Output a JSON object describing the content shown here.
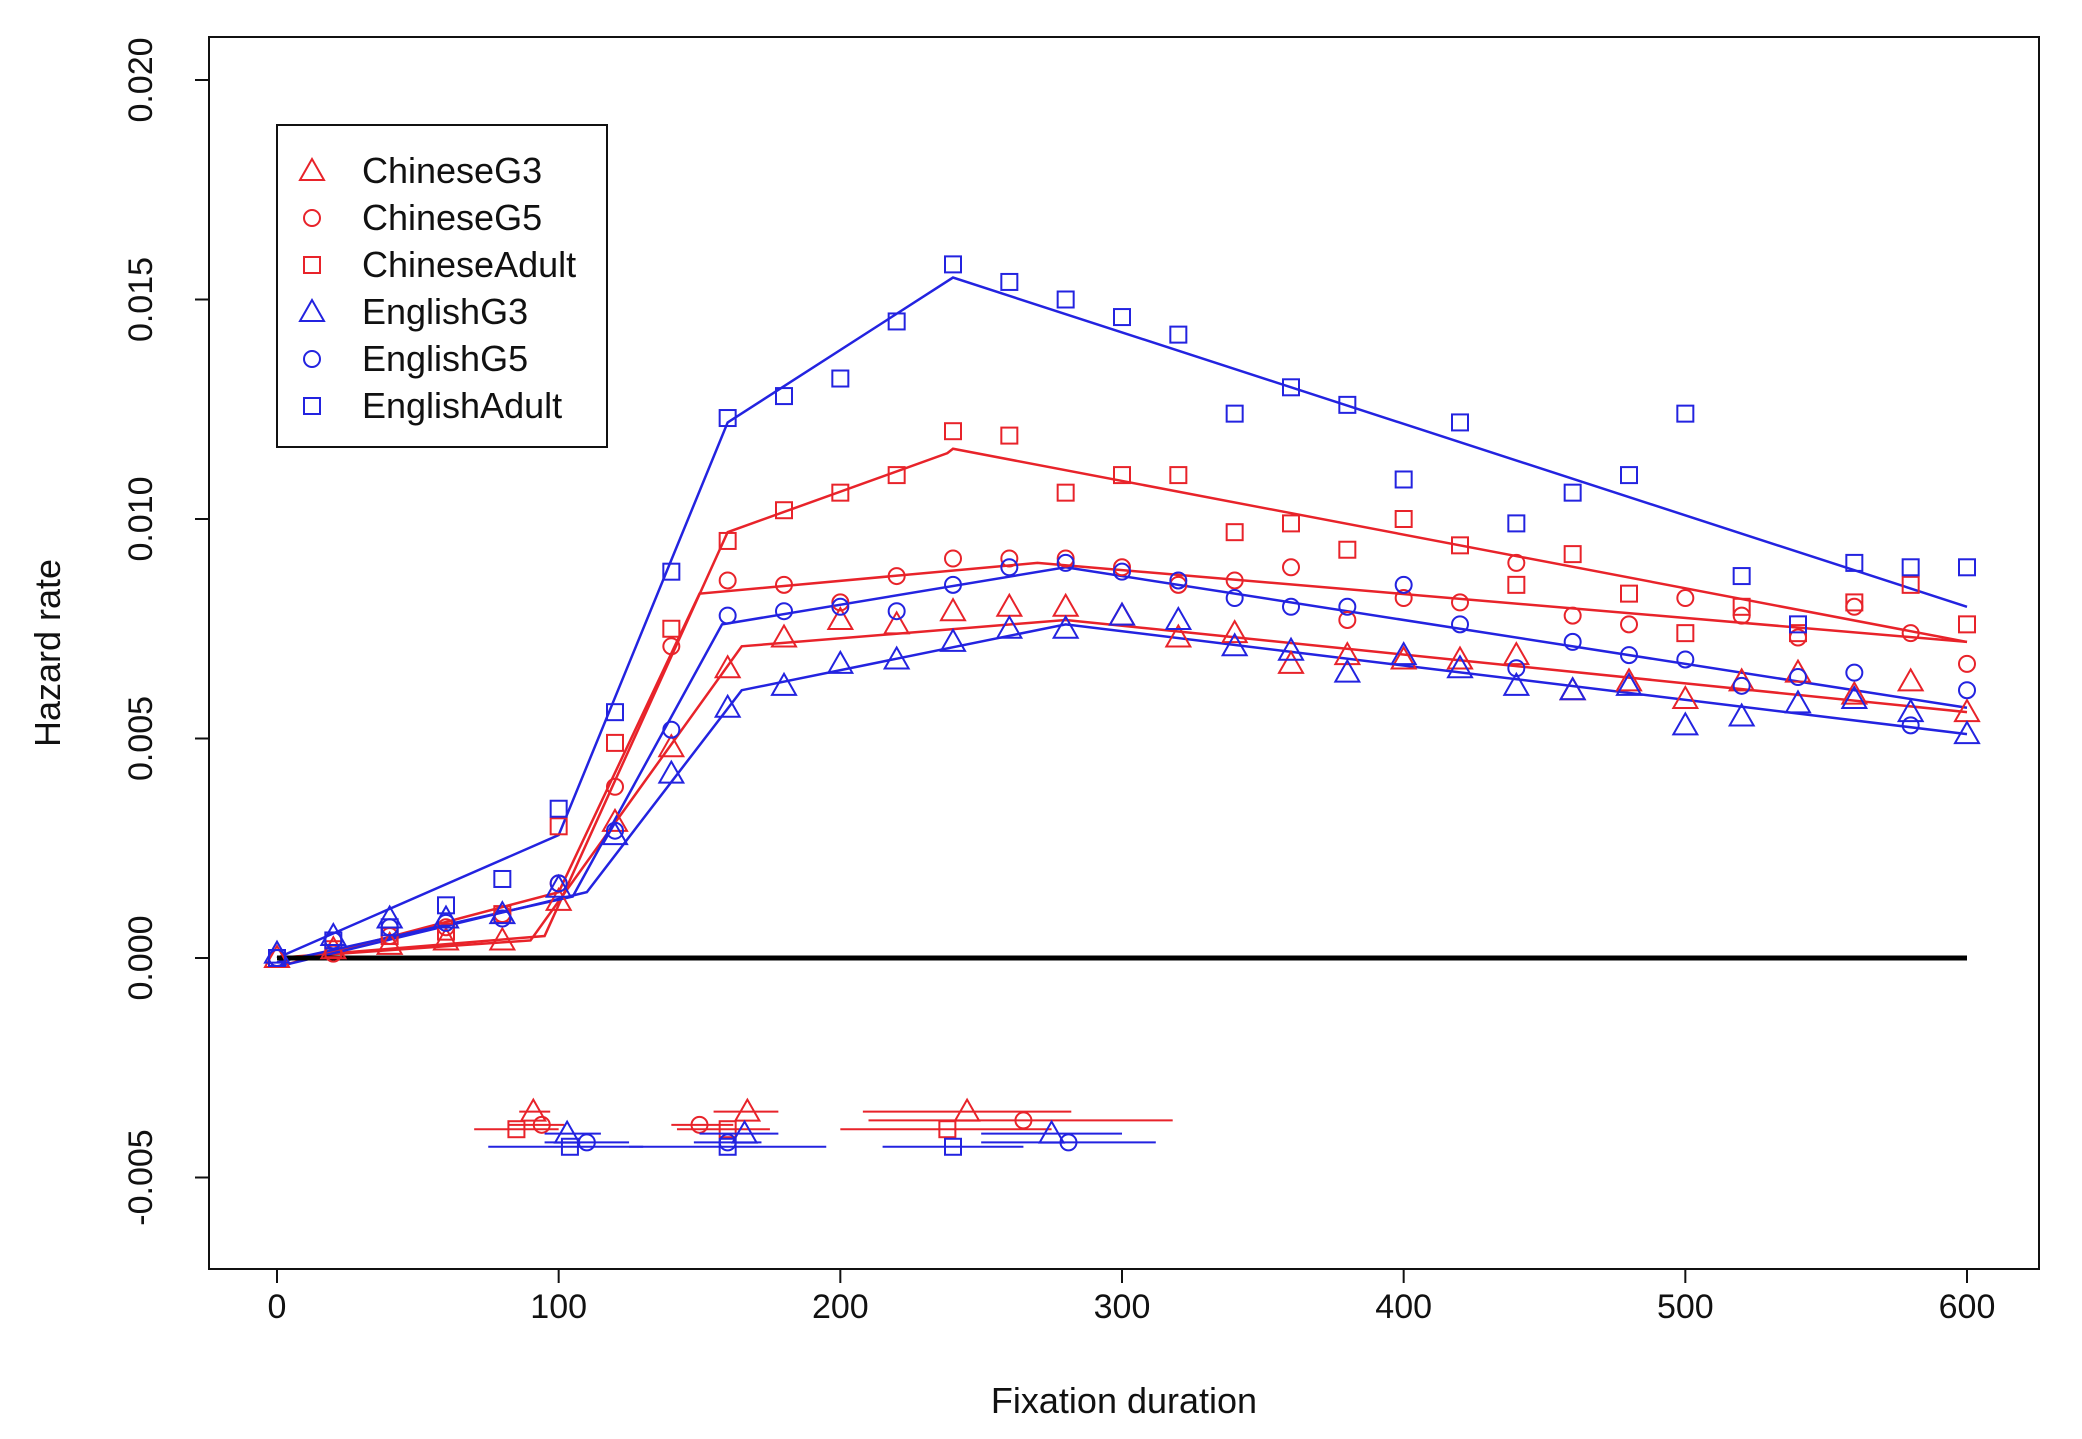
{
  "chart_data": {
    "type": "scatter",
    "title": "",
    "xlabel": "Fixation duration",
    "ylabel": "Hazard rate",
    "xlim": [
      -25,
      625
    ],
    "ylim": [
      -0.006,
      0.021
    ],
    "x_ticks": [
      0,
      100,
      200,
      300,
      400,
      500,
      600
    ],
    "y_ticks": [
      -0.005,
      0.0,
      0.005,
      0.01,
      0.015,
      0.02
    ],
    "y_tick_labels": [
      "-0.005",
      "0.000",
      "0.005",
      "0.010",
      "0.015",
      "0.020"
    ],
    "grid": false,
    "legend_position": "top-left",
    "reference_line_y": 0.0,
    "series": [
      {
        "name": "ChineseG3",
        "color": "#e8232a",
        "marker": "triangle",
        "x": [
          0,
          20,
          40,
          60,
          80,
          100,
          120,
          140,
          160,
          180,
          200,
          220,
          240,
          260,
          280,
          300,
          320,
          340,
          360,
          380,
          400,
          420,
          440,
          460,
          480,
          500,
          520,
          540,
          560,
          580,
          600
        ],
        "values": [
          0.0,
          0.0002,
          0.0003,
          0.0004,
          0.0004,
          0.0013,
          0.0031,
          0.0048,
          0.0066,
          0.0073,
          0.0077,
          0.0076,
          0.0079,
          0.008,
          0.008,
          0.0078,
          0.0073,
          0.0074,
          0.0067,
          0.0069,
          0.0068,
          0.0068,
          0.0069,
          0.0061,
          0.0063,
          0.0059,
          0.0063,
          0.0065,
          0.006,
          0.0063,
          0.0056
        ],
        "fit_x": [
          0,
          90,
          165,
          280,
          600
        ],
        "fit_y": [
          0.0,
          0.0004,
          0.0071,
          0.0077,
          0.0056
        ],
        "breakpoint": {
          "x": 91,
          "low": 86,
          "high": 97,
          "y": -0.0035
        }
      },
      {
        "name": "ChineseG5",
        "color": "#e8232a",
        "marker": "circle",
        "x": [
          0,
          20,
          40,
          60,
          80,
          100,
          120,
          140,
          160,
          180,
          200,
          220,
          240,
          260,
          280,
          300,
          320,
          340,
          360,
          380,
          400,
          420,
          440,
          460,
          480,
          500,
          520,
          540,
          560,
          580,
          600
        ],
        "values": [
          0.0,
          0.0001,
          0.0005,
          0.0007,
          0.001,
          0.0017,
          0.0039,
          0.0071,
          0.0086,
          0.0085,
          0.0081,
          0.0087,
          0.0091,
          0.0091,
          0.0091,
          0.0089,
          0.0085,
          0.0086,
          0.0089,
          0.0077,
          0.0082,
          0.0081,
          0.009,
          0.0078,
          0.0076,
          0.0082,
          0.0078,
          0.0073,
          0.008,
          0.0074,
          0.0067
        ],
        "fit_x": [
          0,
          100,
          150,
          270,
          600
        ],
        "fit_y": [
          -0.0002,
          0.0015,
          0.0083,
          0.009,
          0.0072
        ],
        "breakpoint": {
          "x": 94,
          "low": 82,
          "high": 102,
          "y": -0.0038
        }
      },
      {
        "name": "ChineseAdult",
        "color": "#e8232a",
        "marker": "square",
        "x": [
          0,
          20,
          40,
          60,
          80,
          100,
          120,
          140,
          160,
          180,
          200,
          220,
          240,
          260,
          280,
          300,
          320,
          340,
          360,
          380,
          400,
          420,
          440,
          460,
          480,
          500,
          520,
          540,
          560,
          580,
          600
        ],
        "values": [
          0.0,
          0.0002,
          0.0005,
          0.0006,
          0.001,
          0.003,
          0.0049,
          0.0075,
          0.0095,
          0.0102,
          0.0106,
          0.011,
          0.012,
          0.0119,
          0.0106,
          0.011,
          0.011,
          0.0097,
          0.0099,
          0.0093,
          0.01,
          0.0094,
          0.0085,
          0.0092,
          0.0083,
          0.0074,
          0.008,
          0.0074,
          0.0081,
          0.0085,
          0.0076
        ],
        "fit_x": [
          0,
          95,
          160,
          238,
          240,
          600
        ],
        "fit_y": [
          0.0,
          0.0005,
          0.0097,
          0.0115,
          0.0116,
          0.0072
        ],
        "breakpoint": {
          "x": 85,
          "low": 70,
          "high": 100,
          "y": -0.0039
        }
      },
      {
        "name": "EnglishG3",
        "color": "#2323e0",
        "marker": "triangle",
        "x": [
          0,
          20,
          40,
          60,
          80,
          100,
          120,
          140,
          160,
          180,
          200,
          220,
          240,
          260,
          280,
          300,
          320,
          340,
          360,
          380,
          400,
          420,
          440,
          460,
          480,
          500,
          520,
          540,
          560,
          580,
          600
        ],
        "values": [
          0.0001,
          0.0005,
          0.0009,
          0.0009,
          0.001,
          0.0016,
          0.0028,
          0.0042,
          0.0057,
          0.0062,
          0.0067,
          0.0068,
          0.0072,
          0.0075,
          0.0075,
          0.0078,
          0.0077,
          0.0071,
          0.007,
          0.0065,
          0.0069,
          0.0066,
          0.0062,
          0.0061,
          0.0062,
          0.0053,
          0.0055,
          0.0058,
          0.0059,
          0.0056,
          0.0051
        ],
        "fit_x": [
          0,
          110,
          165,
          280,
          600
        ],
        "fit_y": [
          -0.0002,
          0.0015,
          0.0061,
          0.0076,
          0.0051
        ],
        "breakpoint": {
          "x": 103,
          "low": 95,
          "high": 115,
          "y": -0.004
        }
      },
      {
        "name": "EnglishG5",
        "color": "#2323e0",
        "marker": "circle",
        "x": [
          0,
          20,
          40,
          60,
          80,
          100,
          120,
          140,
          160,
          180,
          200,
          220,
          240,
          260,
          280,
          300,
          320,
          340,
          360,
          380,
          400,
          420,
          440,
          460,
          480,
          500,
          520,
          540,
          560,
          580,
          600
        ],
        "values": [
          0.0,
          0.0004,
          0.0007,
          0.0008,
          0.0009,
          0.0017,
          0.0029,
          0.0052,
          0.0078,
          0.0079,
          0.008,
          0.0079,
          0.0085,
          0.0089,
          0.009,
          0.0088,
          0.0086,
          0.0082,
          0.008,
          0.008,
          0.0085,
          0.0076,
          0.0066,
          0.0072,
          0.0069,
          0.0068,
          0.0062,
          0.0064,
          0.0065,
          0.0053,
          0.0061
        ],
        "fit_x": [
          0,
          105,
          158,
          280,
          600
        ],
        "fit_y": [
          -0.0001,
          0.0014,
          0.0076,
          0.0089,
          0.0057
        ],
        "breakpoint": {
          "x": 110,
          "low": 95,
          "high": 125,
          "y": -0.0042
        }
      },
      {
        "name": "EnglishAdult",
        "color": "#2323e0",
        "marker": "square",
        "x": [
          0,
          20,
          40,
          60,
          80,
          100,
          120,
          140,
          160,
          180,
          200,
          220,
          240,
          260,
          280,
          300,
          320,
          340,
          360,
          380,
          400,
          420,
          440,
          460,
          480,
          500,
          520,
          540,
          560,
          580,
          600
        ],
        "values": [
          0.0,
          0.0004,
          0.0007,
          0.0012,
          0.0018,
          0.0034,
          0.0056,
          0.0088,
          0.0123,
          0.0128,
          0.0132,
          0.0145,
          0.0158,
          0.0154,
          0.015,
          0.0146,
          0.0142,
          0.0124,
          0.013,
          0.0126,
          0.0109,
          0.0122,
          0.0099,
          0.0106,
          0.011,
          0.0124,
          0.0087,
          0.0076,
          0.009,
          0.0089,
          0.0089
        ],
        "fit_x": [
          0,
          100,
          160,
          240,
          600
        ],
        "fit_y": [
          0.0,
          0.0028,
          0.0122,
          0.0155,
          0.008
        ],
        "breakpoint": {
          "x": 104,
          "low": 75,
          "high": 130,
          "y": -0.0043
        }
      }
    ],
    "breakpoint_intervals": [
      {
        "series": "ChineseG3",
        "x": 167,
        "low": 155,
        "high": 178,
        "y": -0.0035
      },
      {
        "series": "ChineseG5",
        "x": 150,
        "low": 140,
        "high": 162,
        "y": -0.0038
      },
      {
        "series": "ChineseAdult",
        "x": 160,
        "low": 142,
        "high": 175,
        "y": -0.0039
      },
      {
        "series": "EnglishG3",
        "x": 166,
        "low": 150,
        "high": 178,
        "y": -0.004
      },
      {
        "series": "EnglishG5",
        "x": 160,
        "low": 148,
        "high": 172,
        "y": -0.0042
      },
      {
        "series": "EnglishAdult",
        "x": 160,
        "low": 125,
        "high": 195,
        "y": -0.0043
      },
      {
        "series": "ChineseG3",
        "x": 245,
        "low": 208,
        "high": 282,
        "y": -0.0035
      },
      {
        "series": "ChineseG5",
        "x": 265,
        "low": 210,
        "high": 318,
        "y": -0.0037
      },
      {
        "series": "ChineseAdult",
        "x": 238,
        "low": 200,
        "high": 275,
        "y": -0.0039
      },
      {
        "series": "EnglishG3",
        "x": 275,
        "low": 250,
        "high": 300,
        "y": -0.004
      },
      {
        "series": "EnglishG5",
        "x": 281,
        "low": 250,
        "high": 312,
        "y": -0.0042
      },
      {
        "series": "EnglishAdult",
        "x": 240,
        "low": 215,
        "high": 265,
        "y": -0.0043
      }
    ]
  }
}
